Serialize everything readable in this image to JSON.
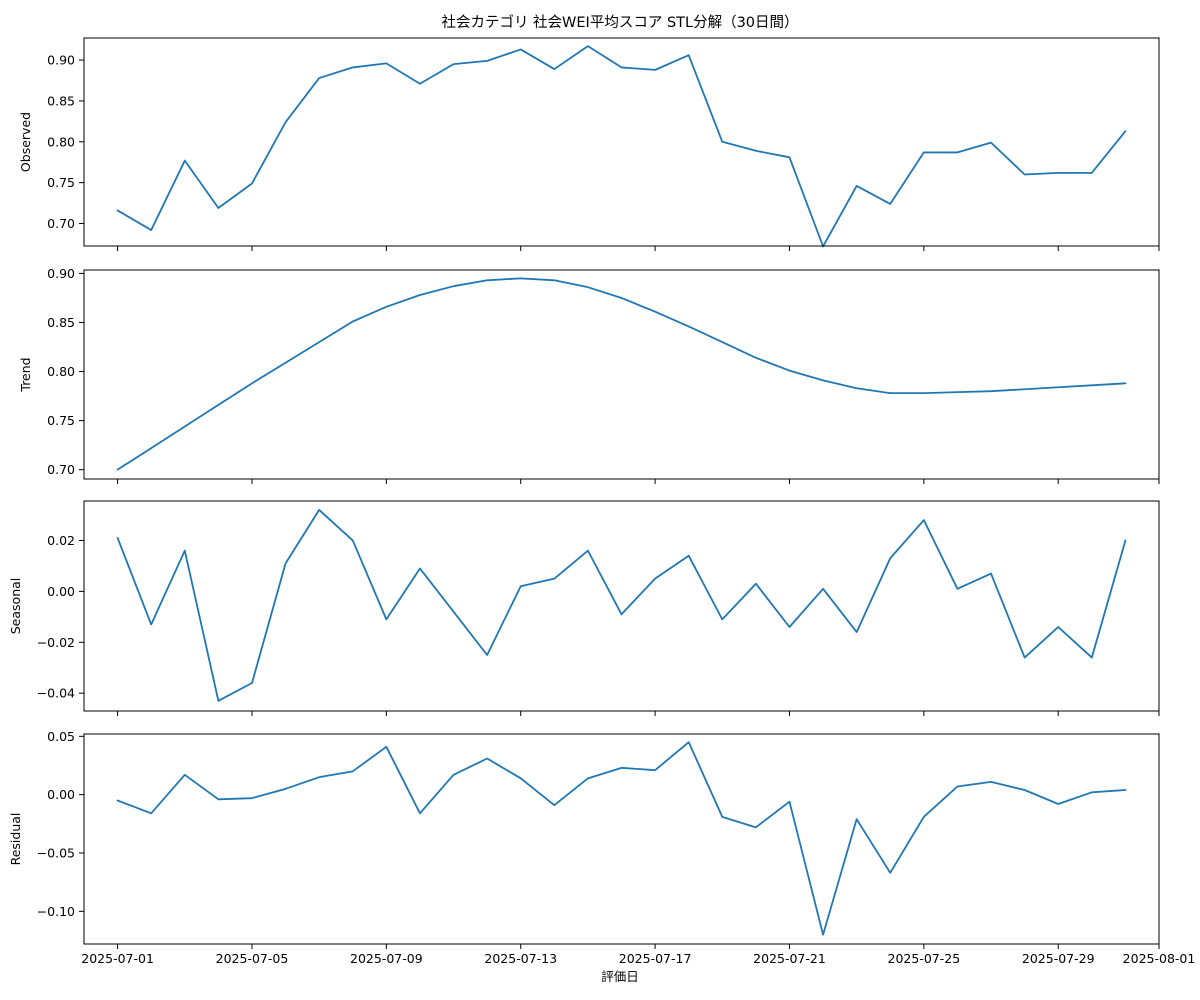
{
  "chart_data": {
    "type": "line",
    "title": "社会カテゴリ 社会WEI平均スコア STL分解（30日間）",
    "xlabel": "評価日",
    "line_color": "#1f77b4",
    "dates": [
      "2025-07-01",
      "2025-07-02",
      "2025-07-03",
      "2025-07-04",
      "2025-07-05",
      "2025-07-06",
      "2025-07-07",
      "2025-07-08",
      "2025-07-09",
      "2025-07-10",
      "2025-07-11",
      "2025-07-12",
      "2025-07-13",
      "2025-07-14",
      "2025-07-15",
      "2025-07-16",
      "2025-07-17",
      "2025-07-18",
      "2025-07-19",
      "2025-07-20",
      "2025-07-21",
      "2025-07-22",
      "2025-07-23",
      "2025-07-24",
      "2025-07-25",
      "2025-07-26",
      "2025-07-27",
      "2025-07-28",
      "2025-07-29",
      "2025-07-30",
      "2025-07-31"
    ],
    "x_range": [
      "2025-06-30",
      "2025-08-01"
    ],
    "x_ticks": [
      "2025-07-01",
      "2025-07-05",
      "2025-07-09",
      "2025-07-13",
      "2025-07-17",
      "2025-07-21",
      "2025-07-25",
      "2025-07-29",
      "2025-08-01"
    ],
    "grid": false,
    "panels": [
      {
        "name": "Observed",
        "ylabel": "Observed",
        "ylim": [
          0.6725,
          0.927
        ],
        "yticks": [
          "0.70",
          "0.75",
          "0.80",
          "0.85",
          "0.90"
        ],
        "values": [
          0.716,
          0.692,
          0.777,
          0.719,
          0.749,
          0.824,
          0.878,
          0.891,
          0.896,
          0.871,
          0.895,
          0.899,
          0.913,
          0.889,
          0.917,
          0.891,
          0.888,
          0.906,
          0.8,
          0.789,
          0.781,
          0.672,
          0.746,
          0.724,
          0.787,
          0.787,
          0.799,
          0.76,
          0.762,
          0.762,
          0.813
        ]
      },
      {
        "name": "Trend",
        "ylabel": "Trend",
        "ylim": [
          0.6905,
          0.9035
        ],
        "yticks": [
          "0.70",
          "0.75",
          "0.80",
          "0.85",
          "0.90"
        ],
        "values": [
          0.7,
          0.722,
          0.744,
          0.766,
          0.788,
          0.809,
          0.83,
          0.851,
          0.866,
          0.878,
          0.887,
          0.893,
          0.895,
          0.893,
          0.886,
          0.875,
          0.861,
          0.846,
          0.83,
          0.814,
          0.801,
          0.791,
          0.783,
          0.778,
          0.778,
          0.779,
          0.78,
          0.782,
          0.784,
          0.786,
          0.788
        ]
      },
      {
        "name": "Seasonal",
        "ylabel": "Seasonal",
        "ylim": [
          -0.047,
          0.0355
        ],
        "yticks": [
          "−0.04",
          "−0.02",
          "0.00",
          "0.02"
        ],
        "values": [
          0.021,
          -0.013,
          0.016,
          -0.043,
          -0.036,
          0.011,
          0.032,
          0.02,
          -0.011,
          0.009,
          -0.008,
          -0.025,
          0.002,
          0.005,
          0.016,
          -0.009,
          0.005,
          0.014,
          -0.011,
          0.003,
          -0.014,
          0.001,
          -0.016,
          0.013,
          0.028,
          0.001,
          0.007,
          -0.026,
          -0.014,
          -0.026,
          0.02
        ]
      },
      {
        "name": "Residual",
        "ylabel": "Residual",
        "ylim": [
          -0.128,
          0.052
        ],
        "yticks": [
          "−0.10",
          "−0.05",
          "0.00",
          "0.05"
        ],
        "values": [
          -0.005,
          -0.016,
          0.017,
          -0.004,
          -0.003,
          0.005,
          0.015,
          0.02,
          0.041,
          -0.016,
          0.017,
          0.031,
          0.014,
          -0.009,
          0.014,
          0.023,
          0.021,
          0.045,
          -0.019,
          -0.028,
          -0.006,
          -0.12,
          -0.021,
          -0.067,
          -0.019,
          0.007,
          0.011,
          0.004,
          -0.008,
          0.002,
          0.004
        ]
      }
    ]
  }
}
